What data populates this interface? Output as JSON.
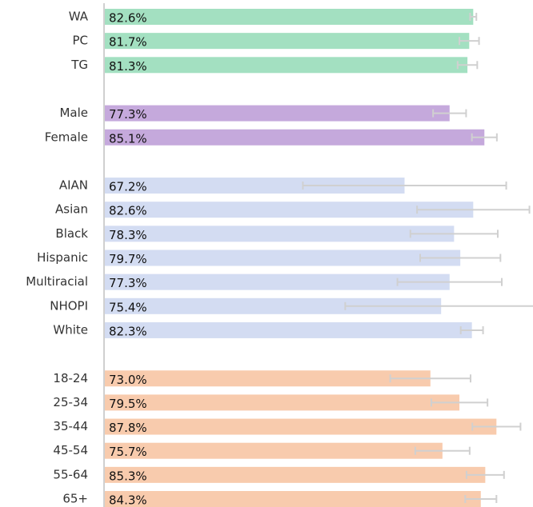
{
  "chart_data": {
    "type": "bar",
    "xlim": [
      0,
      96
    ],
    "groups": [
      {
        "color": "#a3e0c1",
        "categories": [
          "WA",
          "PC",
          "TG"
        ],
        "values": [
          82.6,
          81.7,
          81.3
        ],
        "value_labels": [
          "82.6%",
          "81.7%",
          "81.3%"
        ],
        "errors": [
          0.7,
          2.2,
          2.2
        ]
      },
      {
        "color": "#c5a9dc",
        "categories": [
          "Male",
          "Female"
        ],
        "values": [
          77.3,
          85.1
        ],
        "value_labels": [
          "77.3%",
          "85.1%"
        ],
        "errors": [
          3.7,
          2.8
        ]
      },
      {
        "color": "#d3dcf2",
        "categories": [
          "AIAN",
          "Asian",
          "Black",
          "Hispanic",
          "Multiracial",
          "NHOPI",
          "White"
        ],
        "values": [
          67.2,
          82.6,
          78.3,
          79.7,
          77.3,
          75.4,
          82.3
        ],
        "value_labels": [
          "67.2%",
          "82.6%",
          "78.3%",
          "79.7%",
          "77.3%",
          "75.4%",
          "82.3%"
        ],
        "errors": [
          22.8,
          12.6,
          9.8,
          9.0,
          11.7,
          21.5,
          2.5
        ]
      },
      {
        "color": "#f8cbad",
        "categories": [
          "18-24",
          "25-34",
          "35-44",
          "45-54",
          "55-64",
          "65+"
        ],
        "values": [
          73.0,
          79.5,
          87.8,
          75.7,
          85.3,
          84.3
        ],
        "value_labels": [
          "73.0%",
          "79.5%",
          "87.8%",
          "75.7%",
          "85.3%",
          "84.3%"
        ],
        "errors": [
          9.0,
          6.3,
          5.4,
          6.1,
          4.2,
          3.5
        ]
      }
    ]
  }
}
